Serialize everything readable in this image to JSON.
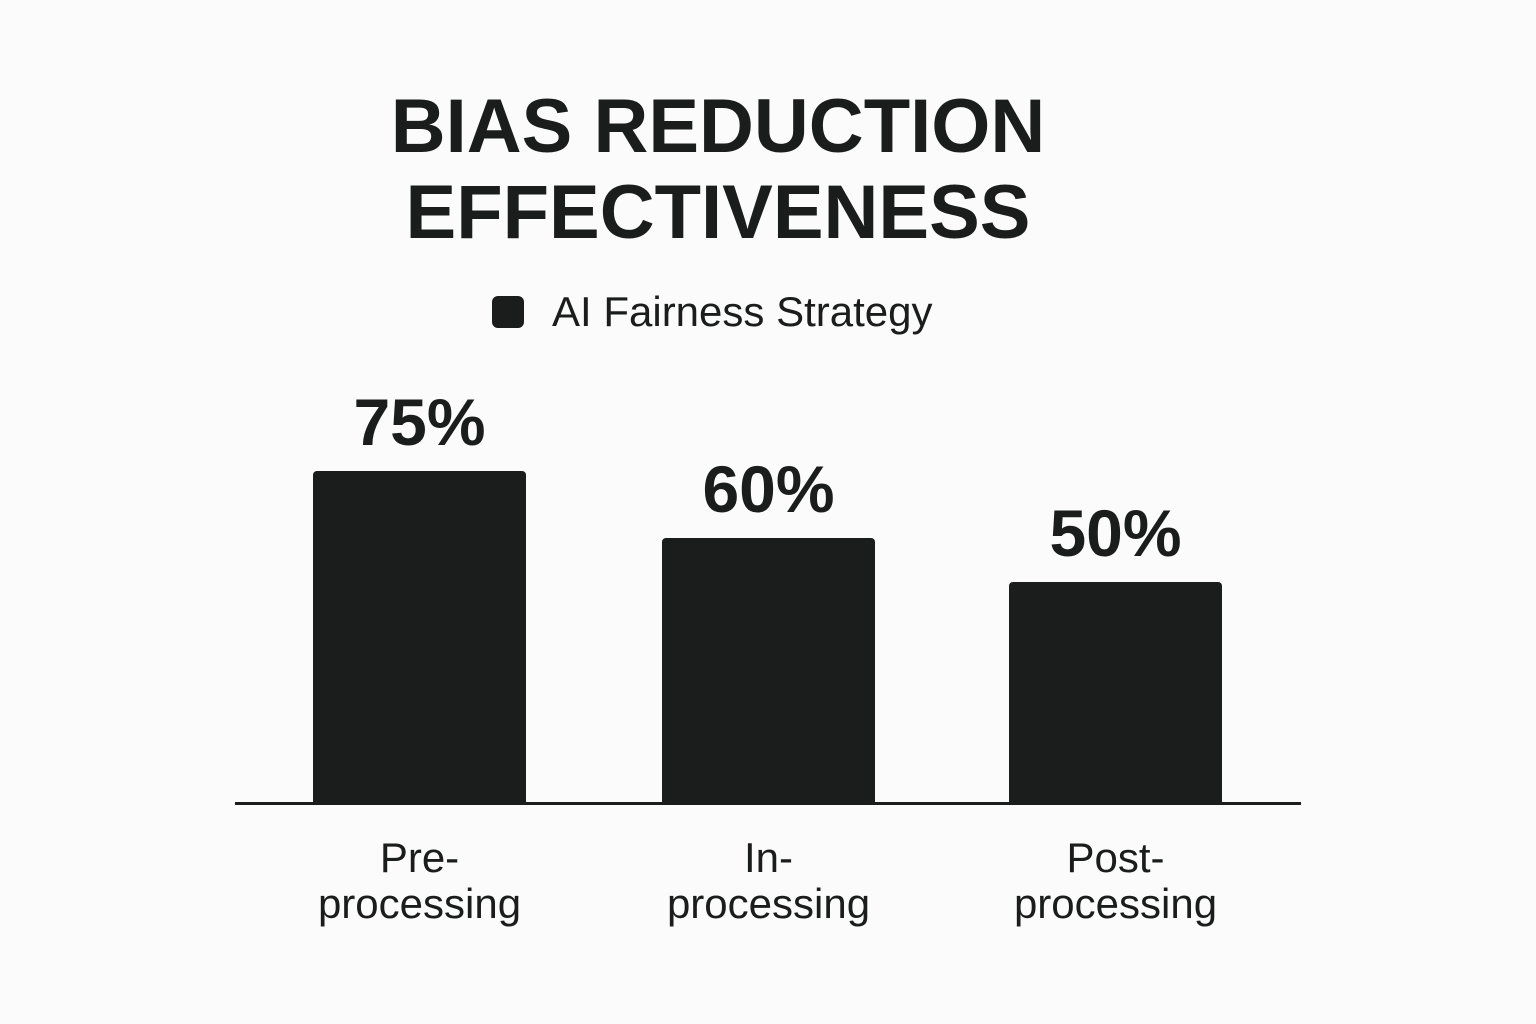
{
  "title": {
    "line1": "BIAS REDUCTION",
    "line2": "EFFECTIVENESS"
  },
  "legend": {
    "items": [
      {
        "label": "AI Fairness Strategy",
        "color": "#1b1c1c",
        "icon": "square-swatch-icon"
      }
    ]
  },
  "bars": [
    {
      "category_line1": "Pre-",
      "category_line2": "processing",
      "value": 75,
      "label": "75%"
    },
    {
      "category_line1": "In-",
      "category_line2": "processing",
      "value": 60,
      "label": "60%"
    },
    {
      "category_line1": "Post-",
      "category_line2": "processing",
      "value": 50,
      "label": "50%"
    }
  ],
  "colors": {
    "background": "#fbfbfb",
    "bar": "#1b1c1c",
    "text": "#1b1c1c"
  },
  "chart_data": {
    "type": "bar",
    "title": "BIAS REDUCTION EFFECTIVENESS",
    "categories": [
      "Pre-processing",
      "In-processing",
      "Post-processing"
    ],
    "series": [
      {
        "name": "AI Fairness Strategy",
        "values": [
          75,
          60,
          50
        ]
      }
    ],
    "values": [
      75,
      60,
      50
    ],
    "value_labels": [
      "75%",
      "60%",
      "50%"
    ],
    "xlabel": "",
    "ylabel": "",
    "ylim": [
      0,
      100
    ],
    "grid": false,
    "y_axis_visible": false,
    "legend_position": "top-center"
  }
}
